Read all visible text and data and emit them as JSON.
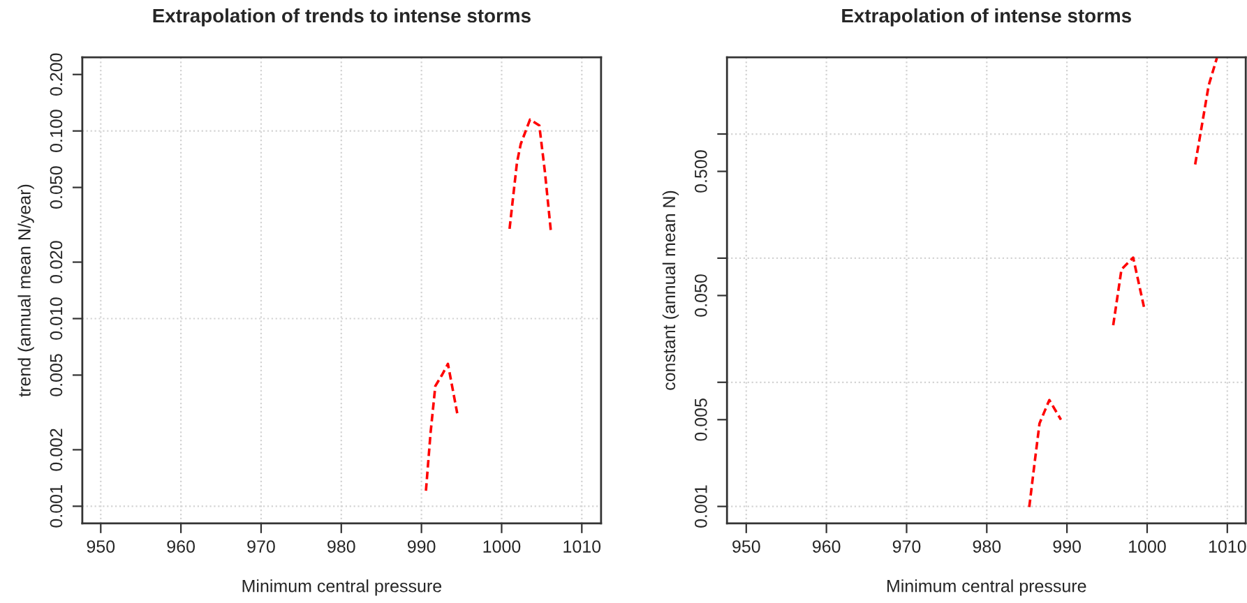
{
  "chart_data": [
    {
      "type": "line",
      "title": "Extrapolation of trends to intense storms",
      "xlabel": "Minimum central pressure",
      "ylabel": "trend (annual mean N/year)",
      "log": "y",
      "grid": "x",
      "line_style": "dashed",
      "marker": "none",
      "xlim": [
        947.7,
        1012.4
      ],
      "xticks": [
        950,
        960,
        970,
        980,
        990,
        1000,
        1010
      ],
      "ylim": [
        0.00081,
        0.247
      ],
      "yticks": [
        0.001,
        0.002,
        0.005,
        {
          "value": 0.01,
          "label": "0.010"
        },
        {
          "value": 0.02,
          "label": "0.020"
        },
        {
          "value": 0.05,
          "label": "0.050"
        },
        {
          "value": 0.1,
          "label": "0.100"
        },
        {
          "value": 0.2,
          "label": "0.200"
        }
      ],
      "ref_lines": [
        {
          "axis": "y",
          "value": 0.001,
          "color": "#d3d3d3",
          "line_style": "dotted"
        },
        {
          "axis": "y",
          "value": 0.01,
          "color": "#d3d3d3",
          "line_style": "dotted"
        },
        {
          "axis": "y",
          "value": 0.1,
          "color": "#d3d3d3",
          "line_style": "dotted"
        }
      ],
      "series": [
        {
          "color": "#ff0000",
          "x": [
            990.56,
            991.14,
            991.73,
            992.6,
            993.3,
            994.46
          ],
          "values": [
            0.00121,
            0.00247,
            0.00437,
            0.00504,
            0.00574,
            0.00313
          ]
        },
        {
          "color": "#ff0000",
          "x": [
            1000.99,
            1001.91,
            1002.38,
            1003.54,
            1004.7,
            1005.4,
            1006.16
          ],
          "values": [
            0.0301,
            0.0677,
            0.0851,
            0.115,
            0.107,
            0.0604,
            0.0287
          ]
        }
      ]
    },
    {
      "type": "line",
      "title": "Extrapolation of intense storms",
      "xlabel": "Minimum central pressure",
      "ylabel": "constant (annual mean N)",
      "log": "y",
      "grid": "x",
      "line_style": "dashed",
      "marker": "none",
      "xlim": [
        947.6,
        1012.3
      ],
      "xticks": [
        950,
        960,
        970,
        980,
        990,
        1000,
        1010
      ],
      "ylim": [
        0.00073,
        4.15
      ],
      "yticks": [
        0.001,
        {
          "value": 0.005,
          "label": "0.005"
        },
        {
          "value": 0.01,
          "label": null
        },
        {
          "value": 0.05,
          "label": "0.050"
        },
        {
          "value": 0.1,
          "label": null
        },
        {
          "value": 0.5,
          "label": "0.500"
        },
        {
          "value": 1,
          "label": null
        }
      ],
      "ref_lines": [
        {
          "axis": "y",
          "value": 0.001,
          "color": "#d3d3d3",
          "line_style": "dotted"
        },
        {
          "axis": "y",
          "value": 0.01,
          "color": "#d3d3d3",
          "line_style": "dotted"
        },
        {
          "axis": "y",
          "value": 0.1,
          "color": "#d3d3d3",
          "line_style": "dotted"
        },
        {
          "axis": "y",
          "value": 1,
          "color": "#d3d3d3",
          "line_style": "dotted"
        }
      ],
      "series": [
        {
          "color": "#ff0000",
          "x": [
            985.3,
            986.0,
            986.58,
            987.8,
            989.25
          ],
          "values": [
            0.00099,
            0.00234,
            0.00467,
            0.00719,
            0.005
          ]
        },
        {
          "color": "#ff0000",
          "x": [
            995.77,
            996.8,
            998.26,
            999.66
          ],
          "values": [
            0.0288,
            0.0812,
            0.101,
            0.0389
          ]
        },
        {
          "color": "#ff0000",
          "x": [
            1005.99,
            1006.69,
            1007.68,
            1008.7
          ],
          "values": [
            0.569,
            1.04,
            2.47,
            4.1
          ]
        }
      ]
    }
  ]
}
